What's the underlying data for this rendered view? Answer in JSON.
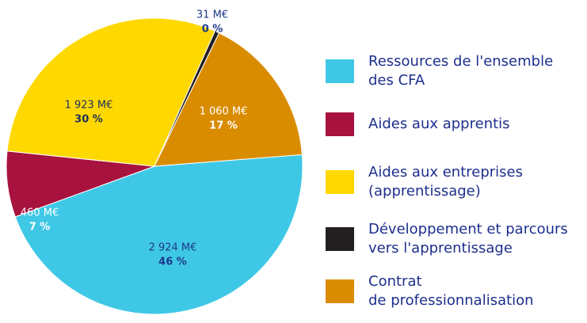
{
  "chart_data": {
    "type": "pie",
    "categories": [
      "Ressources de l'ensemble\ndes CFA",
      "Aides aux apprentis",
      "Aides aux entreprises\n(apprentissage)",
      "Développement et parcours\nvers l'apprentissage",
      "Contrat\nde professionnalisation"
    ],
    "values": [
      2924,
      460,
      1923,
      31,
      1060
    ],
    "value_labels": [
      "2 924 M€",
      "460 M€",
      "1 923 M€",
      "31 M€",
      "1 060 M€"
    ],
    "percentages": [
      46,
      7,
      30,
      0,
      17
    ],
    "percentage_labels": [
      "46 %",
      "7 %",
      "30 %",
      "0 %",
      "17 %"
    ],
    "colors": [
      "#3fc8e6",
      "#a8123e",
      "#ffd800",
      "#231f20",
      "#d98c00"
    ],
    "legend": "right"
  }
}
